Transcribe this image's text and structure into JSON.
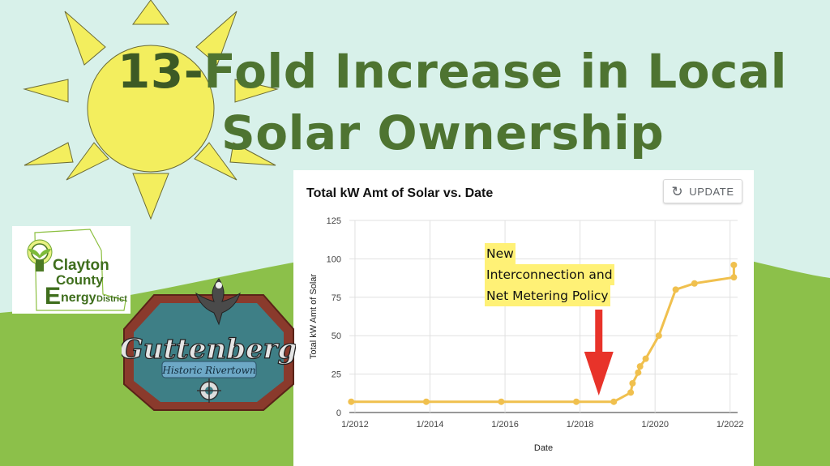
{
  "slide": {
    "title_number": "13-",
    "title_rest": "Fold Increase in Local",
    "title_line2": "Solar Ownership",
    "colors": {
      "title": "#4e7431",
      "sky": "#d8f1ea",
      "hill": "#8cc04a",
      "sun": "#f3ee5e"
    }
  },
  "chart_panel": {
    "update_label": "UPDATE",
    "annotation_lines": [
      "New",
      "Interconnection and",
      "Net Metering Policy"
    ]
  },
  "chart_data": {
    "type": "line",
    "title": "Total kW Amt of Solar  vs. Date",
    "xlabel": "Date",
    "ylabel": "Total kW Amt of Solar",
    "ylim": [
      0,
      125
    ],
    "yticks": [
      0,
      25,
      50,
      75,
      100,
      125
    ],
    "xticks": [
      "1/2012",
      "1/2014",
      "1/2016",
      "1/2018",
      "1/2020",
      "1/2022"
    ],
    "xlim": [
      2011.85,
      2022.2
    ],
    "grid": true,
    "line_color": "#f0c04e",
    "series": [
      {
        "x": [
          2011.9,
          2013.9,
          2015.9,
          2017.9,
          2018.9,
          2019.35,
          2019.4,
          2019.55,
          2019.6,
          2019.75,
          2020.1,
          2020.55,
          2021.05,
          2022.1,
          2022.1
        ],
        "y": [
          7,
          7,
          7,
          7,
          7,
          13,
          19,
          26,
          30,
          35,
          50,
          80,
          84,
          88,
          96
        ]
      }
    ],
    "annotation_arrow_color": "#e8332a"
  },
  "logos": {
    "clayton": {
      "line1": "Clayton",
      "line2": "County",
      "line3_big": "E",
      "line3_rest": "nergy",
      "line3_tail": "District"
    },
    "guttenberg": {
      "name": "Guttenberg",
      "tagline": "Historic Rivertown"
    }
  }
}
